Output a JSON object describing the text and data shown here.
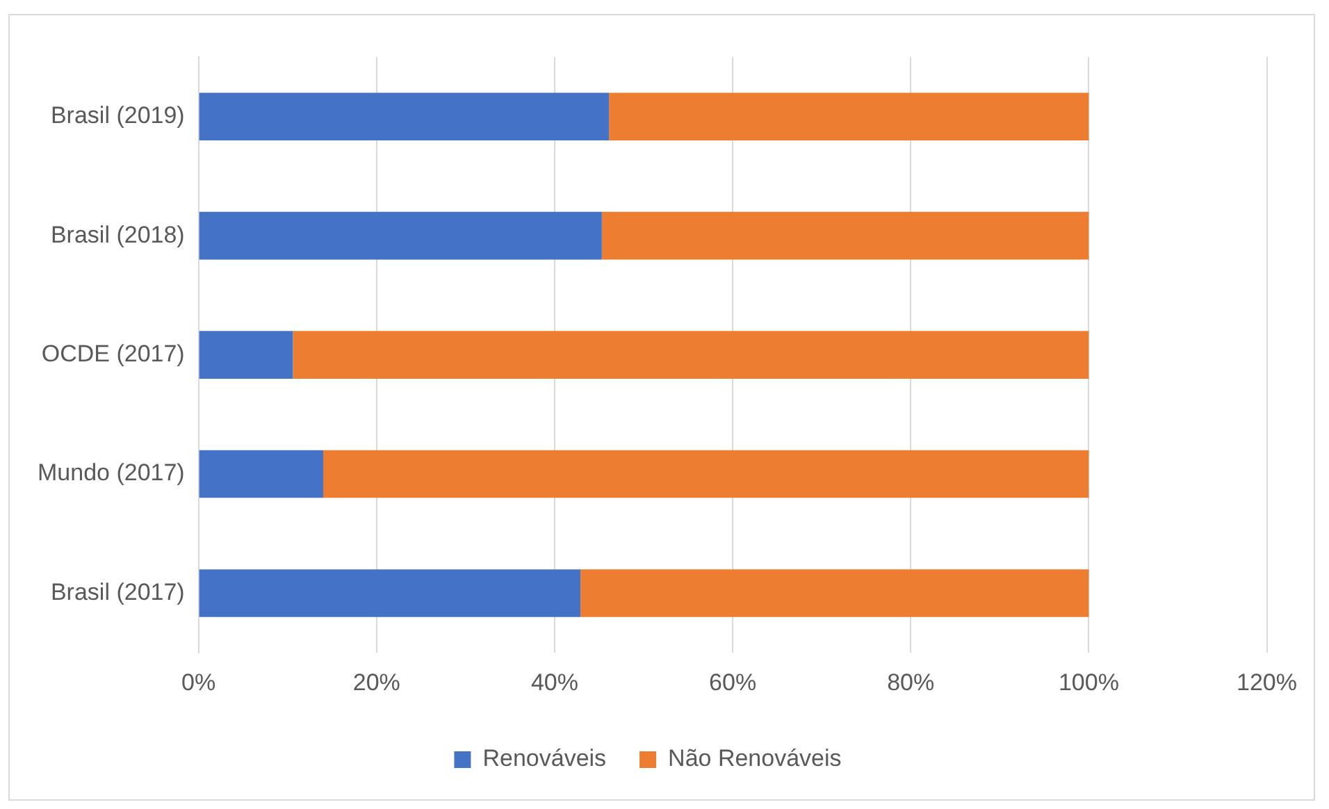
{
  "chart_data": {
    "type": "bar",
    "orientation": "horizontal",
    "stacked": true,
    "categories": [
      "Brasil (2019)",
      "Brasil (2018)",
      "OCDE (2017)",
      "Mundo (2017)",
      "Brasil (2017)"
    ],
    "series": [
      {
        "name": "Renováveis",
        "color": "#4472c4",
        "values": [
          46.1,
          45.3,
          10.6,
          14,
          42.9
        ]
      },
      {
        "name": "Não Renováveis",
        "color": "#ed7d31",
        "values": [
          53.9,
          54.7,
          89.4,
          86,
          57.1
        ]
      }
    ],
    "xlim": [
      0,
      120
    ],
    "xticks": [
      {
        "value": 0,
        "label": "0%"
      },
      {
        "value": 20,
        "label": "20%"
      },
      {
        "value": 40,
        "label": "40%"
      },
      {
        "value": 60,
        "label": "60%"
      },
      {
        "value": 80,
        "label": "80%"
      },
      {
        "value": 100,
        "label": "100%"
      },
      {
        "value": 120,
        "label": "120%"
      }
    ],
    "grid": "x",
    "legend": "bottom"
  }
}
